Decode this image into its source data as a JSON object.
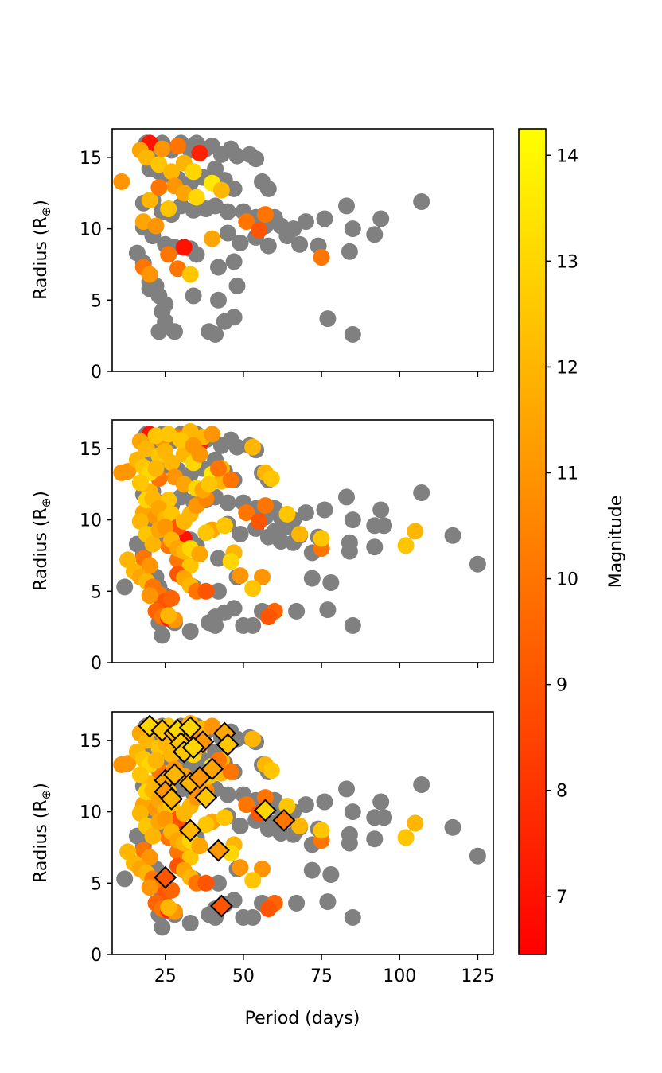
{
  "chart_data": {
    "type": "scatter",
    "x_label": "Period (days)",
    "y_label": "Radius (R",
    "y_label_symbol": "⊕",
    "y_label_close": ")",
    "xlim": [
      8,
      130
    ],
    "ylim": [
      0,
      17
    ],
    "x_ticks": [
      25,
      50,
      75,
      100,
      125
    ],
    "y_ticks": [
      0,
      5,
      10,
      15
    ],
    "colorbar": {
      "label": "Magnitude",
      "range": [
        6.45,
        14.25
      ],
      "ticks": [
        7,
        8,
        9,
        10,
        11,
        12,
        13,
        14
      ],
      "colormap": [
        "#ff0000",
        "#ff8000",
        "#ffff00"
      ]
    },
    "gray_color": "#808080",
    "gray_points_top": [
      [
        19,
        16
      ],
      [
        22,
        15.6
      ],
      [
        24,
        16
      ],
      [
        27,
        15.5
      ],
      [
        30,
        16
      ],
      [
        33,
        15.5
      ],
      [
        35,
        16
      ],
      [
        38,
        15.6
      ],
      [
        40,
        15.8
      ],
      [
        43,
        15.2
      ],
      [
        46,
        15.6
      ],
      [
        48,
        15.1
      ],
      [
        52,
        15.2
      ],
      [
        54,
        14.9
      ],
      [
        20,
        14.2
      ],
      [
        23,
        14
      ],
      [
        26,
        13.8
      ],
      [
        29,
        13.5
      ],
      [
        33,
        13.2
      ],
      [
        37,
        13.6
      ],
      [
        41,
        14.2
      ],
      [
        44,
        13.4
      ],
      [
        47,
        12.8
      ],
      [
        56,
        13.3
      ],
      [
        58,
        12.8
      ],
      [
        18,
        11.8
      ],
      [
        21,
        12
      ],
      [
        24,
        11.2
      ],
      [
        27,
        11
      ],
      [
        30,
        11.6
      ],
      [
        34,
        11.3
      ],
      [
        38,
        11.4
      ],
      [
        41,
        11.6
      ],
      [
        45,
        11.2
      ],
      [
        50,
        11.2
      ],
      [
        54,
        10.8
      ],
      [
        57,
        10.2
      ],
      [
        60,
        10.8
      ],
      [
        62,
        10.2
      ],
      [
        64,
        9.5
      ],
      [
        66,
        10
      ],
      [
        68,
        8.9
      ],
      [
        70,
        10.5
      ],
      [
        74,
        8.8
      ],
      [
        76,
        10.7
      ],
      [
        83,
        11.6
      ],
      [
        85,
        10
      ],
      [
        92,
        9.6
      ],
      [
        94,
        10.7
      ],
      [
        107,
        11.9
      ],
      [
        18,
        10.1
      ],
      [
        21,
        9.5
      ],
      [
        25,
        8.9
      ],
      [
        28,
        8.7
      ],
      [
        33,
        8.6
      ],
      [
        35,
        8.2
      ],
      [
        45,
        9.7
      ],
      [
        49,
        9
      ],
      [
        54,
        9.4
      ],
      [
        58,
        8.8
      ],
      [
        84,
        8.4
      ],
      [
        16,
        8.3
      ],
      [
        18,
        7.6
      ],
      [
        20,
        6.3
      ],
      [
        22,
        6
      ],
      [
        42,
        7.3
      ],
      [
        47,
        7.7
      ],
      [
        20,
        5.8
      ],
      [
        23,
        5.3
      ],
      [
        25,
        4.7
      ],
      [
        34,
        5.3
      ],
      [
        42,
        5
      ],
      [
        48,
        6
      ],
      [
        24,
        4.2
      ],
      [
        25,
        3.5
      ],
      [
        44,
        3.5
      ],
      [
        47,
        3.8
      ],
      [
        77,
        3.7
      ],
      [
        23,
        2.8
      ],
      [
        28,
        2.8
      ],
      [
        39,
        2.8
      ],
      [
        41,
        2.6
      ],
      [
        85,
        2.6
      ]
    ],
    "gray_points_full": [
      [
        19,
        16
      ],
      [
        22,
        15.6
      ],
      [
        24,
        16
      ],
      [
        27,
        15.5
      ],
      [
        30,
        16
      ],
      [
        33,
        15.5
      ],
      [
        35,
        16
      ],
      [
        38,
        15.6
      ],
      [
        40,
        15.8
      ],
      [
        43,
        15.2
      ],
      [
        46,
        15.6
      ],
      [
        48,
        15.1
      ],
      [
        52,
        15.2
      ],
      [
        54,
        14.9
      ],
      [
        20,
        14.2
      ],
      [
        23,
        14
      ],
      [
        26,
        13.8
      ],
      [
        29,
        13.5
      ],
      [
        33,
        13.2
      ],
      [
        37,
        13.6
      ],
      [
        41,
        14.2
      ],
      [
        44,
        13.4
      ],
      [
        47,
        12.8
      ],
      [
        56,
        13.3
      ],
      [
        58,
        12.8
      ],
      [
        18,
        11.8
      ],
      [
        21,
        12
      ],
      [
        24,
        11.2
      ],
      [
        27,
        11
      ],
      [
        30,
        11.6
      ],
      [
        34,
        11.3
      ],
      [
        38,
        11.4
      ],
      [
        41,
        11.6
      ],
      [
        45,
        11.2
      ],
      [
        50,
        11.2
      ],
      [
        54,
        10.8
      ],
      [
        57,
        10.2
      ],
      [
        60,
        10.8
      ],
      [
        62,
        10.2
      ],
      [
        64,
        9.5
      ],
      [
        66,
        10
      ],
      [
        68,
        8.9
      ],
      [
        70,
        10.5
      ],
      [
        74,
        8.8
      ],
      [
        76,
        10.7
      ],
      [
        83,
        11.6
      ],
      [
        85,
        10
      ],
      [
        92,
        9.6
      ],
      [
        94,
        10.7
      ],
      [
        107,
        11.9
      ],
      [
        18,
        10.1
      ],
      [
        21,
        9.5
      ],
      [
        25,
        8.9
      ],
      [
        28,
        8.7
      ],
      [
        33,
        8.6
      ],
      [
        35,
        8.2
      ],
      [
        45,
        9.7
      ],
      [
        49,
        9
      ],
      [
        54,
        9.4
      ],
      [
        58,
        8.8
      ],
      [
        84,
        8.4
      ],
      [
        16,
        8.3
      ],
      [
        18,
        7.6
      ],
      [
        20,
        6.3
      ],
      [
        22,
        6
      ],
      [
        42,
        7.3
      ],
      [
        47,
        7.7
      ],
      [
        20,
        5.8
      ],
      [
        23,
        5.3
      ],
      [
        25,
        4.7
      ],
      [
        34,
        5.3
      ],
      [
        42,
        5
      ],
      [
        48,
        6
      ],
      [
        24,
        4.2
      ],
      [
        25,
        3.5
      ],
      [
        44,
        3.5
      ],
      [
        47,
        3.8
      ],
      [
        77,
        3.7
      ],
      [
        23,
        2.8
      ],
      [
        28,
        2.8
      ],
      [
        39,
        2.8
      ],
      [
        41,
        2.6
      ],
      [
        85,
        2.6
      ],
      [
        12,
        5.3
      ],
      [
        24,
        1.9
      ],
      [
        33,
        2.2
      ],
      [
        41,
        3.2
      ],
      [
        50,
        2.6
      ],
      [
        53,
        2.6
      ],
      [
        56,
        3.6
      ],
      [
        60,
        9.2
      ],
      [
        62,
        8.5
      ],
      [
        66,
        8.4
      ],
      [
        72,
        7.7
      ],
      [
        78,
        5.6
      ],
      [
        95,
        9.6
      ],
      [
        117,
        8.9
      ],
      [
        125,
        6.9
      ],
      [
        92,
        8.1
      ],
      [
        84,
        7.8
      ],
      [
        72,
        5.9
      ],
      [
        67,
        3.6
      ]
    ],
    "colored_points_top": [
      [
        20,
        16,
        7
      ],
      [
        17,
        15.5,
        11.5
      ],
      [
        24,
        15.6,
        11
      ],
      [
        29,
        15.8,
        10
      ],
      [
        36,
        15.3,
        7.5
      ],
      [
        19,
        15,
        12
      ],
      [
        23,
        14.5,
        12.5
      ],
      [
        27,
        14,
        12
      ],
      [
        31,
        14.6,
        12
      ],
      [
        34,
        14,
        13
      ],
      [
        28,
        13,
        11
      ],
      [
        40,
        13.2,
        13.5
      ],
      [
        43,
        12.7,
        12
      ],
      [
        11,
        13.3,
        11
      ],
      [
        20,
        12,
        12
      ],
      [
        23,
        12.9,
        10
      ],
      [
        31,
        12.5,
        11.5
      ],
      [
        35,
        12.2,
        13
      ],
      [
        18,
        10.5,
        11.5
      ],
      [
        22,
        10.2,
        11
      ],
      [
        26,
        11.4,
        12.5
      ],
      [
        40,
        9.3,
        11.5
      ],
      [
        51,
        10.5,
        10
      ],
      [
        57,
        11,
        10
      ],
      [
        55,
        9.9,
        9
      ],
      [
        75,
        8,
        10
      ],
      [
        31,
        8.7,
        7
      ],
      [
        26,
        8.2,
        10
      ],
      [
        18,
        7.3,
        10
      ],
      [
        20,
        6.8,
        11
      ],
      [
        29,
        7.2,
        10
      ],
      [
        33,
        6.8,
        12.5
      ]
    ],
    "colored_points_extra": [
      [
        13,
        13.4,
        11
      ],
      [
        16,
        14.2,
        12
      ],
      [
        18,
        13.7,
        12.5
      ],
      [
        20,
        13.3,
        13
      ],
      [
        22,
        13.6,
        12
      ],
      [
        25,
        14.8,
        12
      ],
      [
        17,
        12.6,
        12.5
      ],
      [
        19,
        11.4,
        13
      ],
      [
        21,
        11.5,
        12
      ],
      [
        23,
        10.8,
        11.5
      ],
      [
        25,
        10.1,
        12
      ],
      [
        27,
        10.4,
        12.5
      ],
      [
        29,
        9.5,
        9
      ],
      [
        31,
        9.9,
        12
      ],
      [
        33,
        10.4,
        12
      ],
      [
        35,
        11,
        11
      ],
      [
        38,
        11.5,
        10.5
      ],
      [
        43,
        13.6,
        12
      ],
      [
        46,
        12.8,
        10
      ],
      [
        37,
        12.1,
        11.5
      ],
      [
        39,
        12.5,
        12.5
      ],
      [
        17,
        9.9,
        12
      ],
      [
        19,
        9,
        12.5
      ],
      [
        21,
        8.3,
        12
      ],
      [
        23,
        9.3,
        11.5
      ],
      [
        25,
        9.5,
        11
      ],
      [
        27,
        8.6,
        12
      ],
      [
        29,
        8,
        11.5
      ],
      [
        31,
        7.8,
        12
      ],
      [
        33,
        8,
        13
      ],
      [
        36,
        7.6,
        11.5
      ],
      [
        38,
        9.1,
        12.5
      ],
      [
        44,
        9.6,
        12.5
      ],
      [
        47,
        7.7,
        12
      ],
      [
        49,
        6.1,
        11
      ],
      [
        46,
        7.1,
        13
      ],
      [
        56,
        6,
        11
      ],
      [
        53,
        5.2,
        12.5
      ],
      [
        13,
        7.2,
        12
      ],
      [
        15,
        6.4,
        12
      ],
      [
        17,
        6,
        11.5
      ],
      [
        19,
        5.7,
        12
      ],
      [
        21,
        5.3,
        10
      ],
      [
        23,
        4.8,
        10
      ],
      [
        25,
        4.3,
        9
      ],
      [
        27,
        4.5,
        9.5
      ],
      [
        29,
        6.2,
        9
      ],
      [
        31,
        5.9,
        11.5
      ],
      [
        33,
        5.4,
        12
      ],
      [
        35,
        5,
        10
      ],
      [
        38,
        5,
        9
      ],
      [
        20,
        4.7,
        11
      ],
      [
        22,
        3.6,
        9.5
      ],
      [
        24,
        3.2,
        10
      ],
      [
        26,
        3.1,
        7.5
      ],
      [
        28,
        3,
        11
      ],
      [
        26,
        3.3,
        12
      ],
      [
        60,
        3.6,
        9.5
      ],
      [
        58,
        3.2,
        9
      ],
      [
        64,
        10.4,
        12.5
      ],
      [
        68,
        9,
        12
      ],
      [
        75,
        8.7,
        12.5
      ],
      [
        102,
        8.2,
        12.5
      ],
      [
        105,
        9.2,
        12
      ],
      [
        57,
        13.3,
        12
      ],
      [
        59,
        12.9,
        12.5
      ],
      [
        53,
        15.1,
        12
      ],
      [
        22,
        15.9,
        12.5
      ],
      [
        26,
        16,
        12.5
      ],
      [
        33,
        16.2,
        12
      ],
      [
        37,
        15.8,
        12
      ],
      [
        40,
        16,
        11
      ],
      [
        30,
        15.6,
        12.5
      ],
      [
        34,
        15.2,
        11
      ],
      [
        36,
        14.6,
        11
      ],
      [
        42,
        13.6,
        10
      ]
    ],
    "diamond_points": [
      [
        20,
        16,
        13
      ],
      [
        24,
        15.7,
        12.5
      ],
      [
        28,
        15.5,
        12
      ],
      [
        29,
        15.7,
        13
      ],
      [
        33,
        15.9,
        13
      ],
      [
        44,
        15.5,
        11.5
      ],
      [
        30,
        14.8,
        12.5
      ],
      [
        31,
        14.2,
        12.5
      ],
      [
        45,
        14.7,
        12.5
      ],
      [
        37,
        14.9,
        11
      ],
      [
        34,
        14.5,
        13
      ],
      [
        25,
        12.2,
        11.5
      ],
      [
        28,
        12.6,
        12
      ],
      [
        33,
        12,
        12
      ],
      [
        36,
        12.4,
        11
      ],
      [
        40,
        13,
        11.5
      ],
      [
        38,
        11,
        12.5
      ],
      [
        25,
        11.4,
        11
      ],
      [
        27,
        10.9,
        12
      ],
      [
        57,
        10.1,
        13
      ],
      [
        63,
        9.4,
        10
      ],
      [
        33,
        8.7,
        12
      ],
      [
        42,
        7.3,
        11
      ],
      [
        25,
        5.4,
        9
      ],
      [
        43,
        3.4,
        9
      ]
    ]
  }
}
